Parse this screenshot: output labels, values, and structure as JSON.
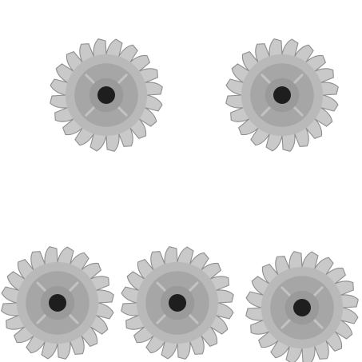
{
  "scene": {
    "background_color": "#ffffff",
    "object_type": "circular-saw-blade",
    "object_count": 5,
    "colors": {
      "blade_teeth": "#c9c9c9",
      "blade_teeth_edge": "#8e8e8e",
      "blade_body": "#b9b9b9",
      "blade_ring": "#a6a6a6",
      "blade_core": "#9a9a9a",
      "arbor_hole": "#1e1e1e",
      "highlight": "#e6e6e6"
    }
  }
}
